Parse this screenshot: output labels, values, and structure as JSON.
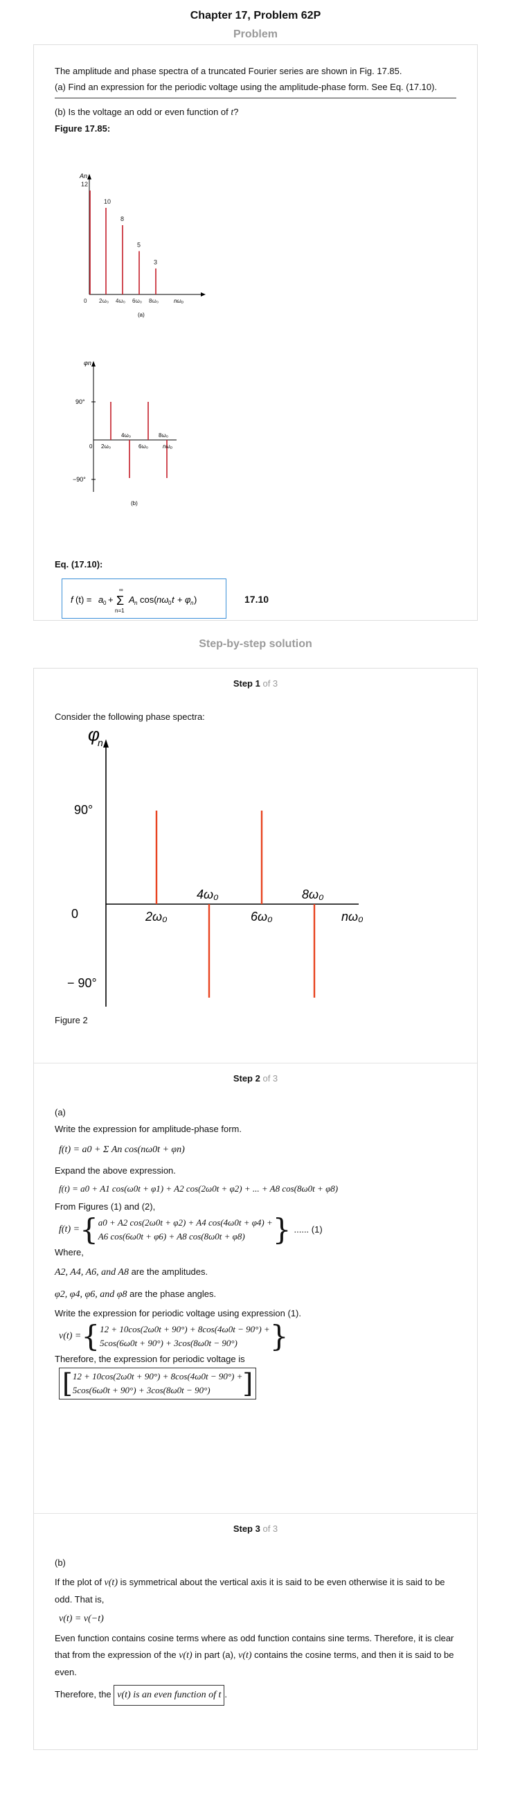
{
  "title": "Chapter 17, Problem 62P",
  "problem_heading": "Problem",
  "problem": {
    "intro": "The amplitude and phase spectra of a truncated Fourier series are shown in Fig. 17.85.",
    "part_a": "(a) Find an expression for the periodic voltage using the amplitude-phase form. See Eq. (17.10).",
    "part_b_prefix": "(b) Is the voltage an odd or even function of ",
    "part_b_var": "t",
    "part_b_suffix": "?",
    "figure_label": "Figure 17.85:",
    "eq_label": "Eq. (17.10):",
    "eq_number": "17.10",
    "eq_text": "f(t) = a0 + Σ An cos(nω0t + φn)"
  },
  "chart_data": [
    {
      "type": "bar",
      "ylabel": "An",
      "xlabel": "nω0",
      "caption": "(a)",
      "origin_label": "0",
      "categories": [
        "0",
        "2ω0",
        "4ω0",
        "6ω0",
        "8ω0"
      ],
      "values": [
        12,
        10,
        8,
        5,
        3
      ],
      "bar_color": "#c41e2a"
    },
    {
      "type": "bar",
      "ylabel": "φn",
      "xlabel": "nω0",
      "caption": "(b)",
      "origin_label": "0",
      "yticks": [
        "90°",
        "−90°"
      ],
      "categories": [
        "2ω0",
        "4ω0",
        "6ω0",
        "8ω0"
      ],
      "values": [
        90,
        -90,
        90,
        -90
      ],
      "bar_color": "#c41e2a"
    },
    {
      "type": "bar",
      "ylabel": "φn",
      "xlabel": "nω0",
      "caption": "Figure 2",
      "origin_label": "0",
      "yticks": [
        "90°",
        "− 90°"
      ],
      "categories": [
        "2ω0",
        "4ω0",
        "6ω0",
        "8ω0"
      ],
      "values": [
        90,
        -90,
        90,
        -90
      ],
      "bar_color": "#e8431f"
    }
  ],
  "solution_heading": "Step-by-step solution",
  "steps": [
    {
      "label": "Step 1",
      "of": "of 3",
      "text": "Consider the following phase spectra:"
    },
    {
      "label": "Step 2",
      "of": "of 3",
      "part": "(a)",
      "t1": "Write the expression for amplitude-phase form.",
      "eq1": "f(t) = a0 + Σ An cos(nω0t + φn)",
      "t2": "Expand the above expression.",
      "eq2": "f(t) = a0 + A1 cos(ω0t + φ1) + A2 cos(2ω0t + φ2) + ... + A8 cos(8ω0t + φ8)",
      "t3": "From Figures (1) and (2),",
      "eq3a": "a0 + A2 cos(2ω0t + φ2) + A4 cos(4ω0t + φ4) +",
      "eq3b": "A6 cos(6ω0t + φ6) + A8 cos(8ω0t + φ8)",
      "eq3_tag": "...... (1)",
      "t4": "Where,",
      "amp_vars": "A2, A4, A6, and A8",
      "amp_text": " are the amplitudes.",
      "phase_vars": "φ2, φ4, φ6, and φ8",
      "phase_text": " are the phase angles.",
      "t5": "Write the expression for periodic voltage using expression (1).",
      "eq4a": "12 + 10cos(2ω0t + 90°) + 8cos(4ω0t − 90°) +",
      "eq4b": "5cos(6ω0t + 90°) + 3cos(8ω0t − 90°)",
      "t6": "Therefore, the expression for periodic voltage is"
    },
    {
      "label": "Step 3",
      "of": "of 3",
      "part": "(b)",
      "t1a": "If the plot of ",
      "t1b": " is symmetrical about the vertical axis it is said to be even otherwise it is said to be odd. That is,",
      "vt": "v(t)",
      "eq1": "v(t) = v(−t)",
      "t2a": "Even function contains cosine terms where as odd function contains sine terms. Therefore, it is clear that from the expression of the ",
      "t2b": " in part (a), ",
      "t2c": " contains the cosine terms, and then it is said to be even.",
      "t3a": "Therefore, the ",
      "final": "v(t) is an even function of t",
      "t3b": "."
    }
  ]
}
